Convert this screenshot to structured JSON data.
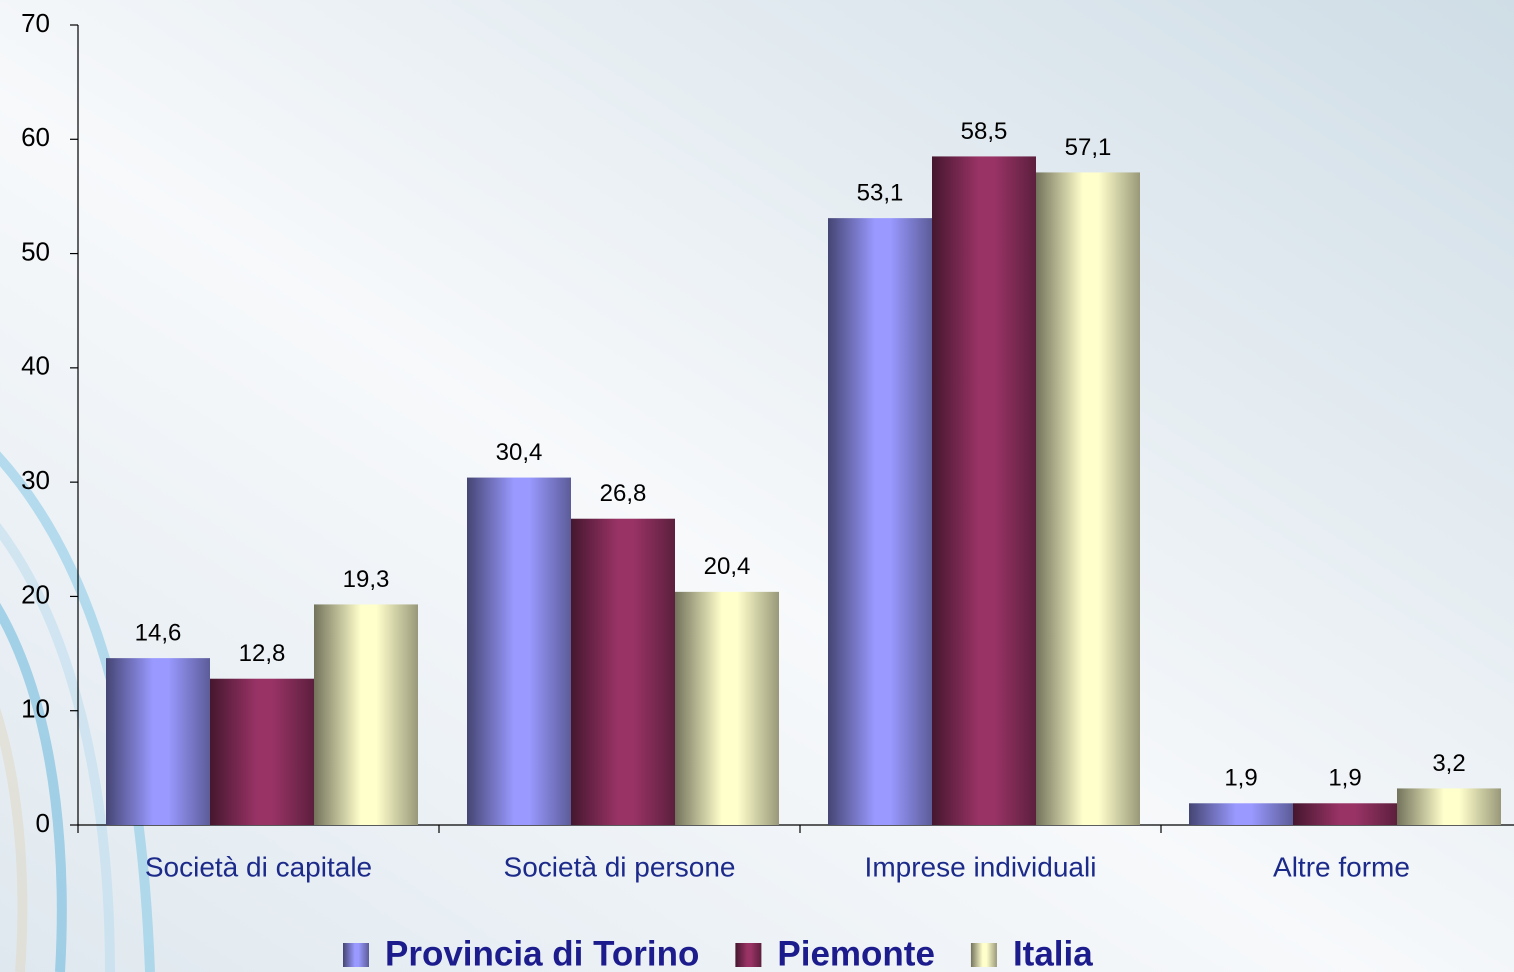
{
  "chart_data": {
    "type": "bar",
    "categories": [
      "Società di capitale",
      "Società di persone",
      "Imprese individuali",
      "Altre forme"
    ],
    "series": [
      {
        "name": "Provincia di Torino",
        "color": "#9999ff",
        "values": [
          14.6,
          30.4,
          53.1,
          1.9
        ],
        "value_labels": [
          "14,6",
          "30,4",
          "53,1",
          "1,9"
        ]
      },
      {
        "name": "Piemonte",
        "color": "#993366",
        "values": [
          12.8,
          26.8,
          58.5,
          1.9
        ],
        "value_labels": [
          "12,8",
          "26,8",
          "58,5",
          "1,9"
        ]
      },
      {
        "name": "Italia",
        "color": "#ffffcc",
        "values": [
          19.3,
          20.4,
          57.1,
          3.2
        ],
        "value_labels": [
          "19,3",
          "20,4",
          "57,1",
          "3,2"
        ]
      }
    ],
    "ylim": [
      0,
      70
    ],
    "yticks": [
      0,
      10,
      20,
      30,
      40,
      50,
      60,
      70
    ],
    "legend": "bottom"
  }
}
